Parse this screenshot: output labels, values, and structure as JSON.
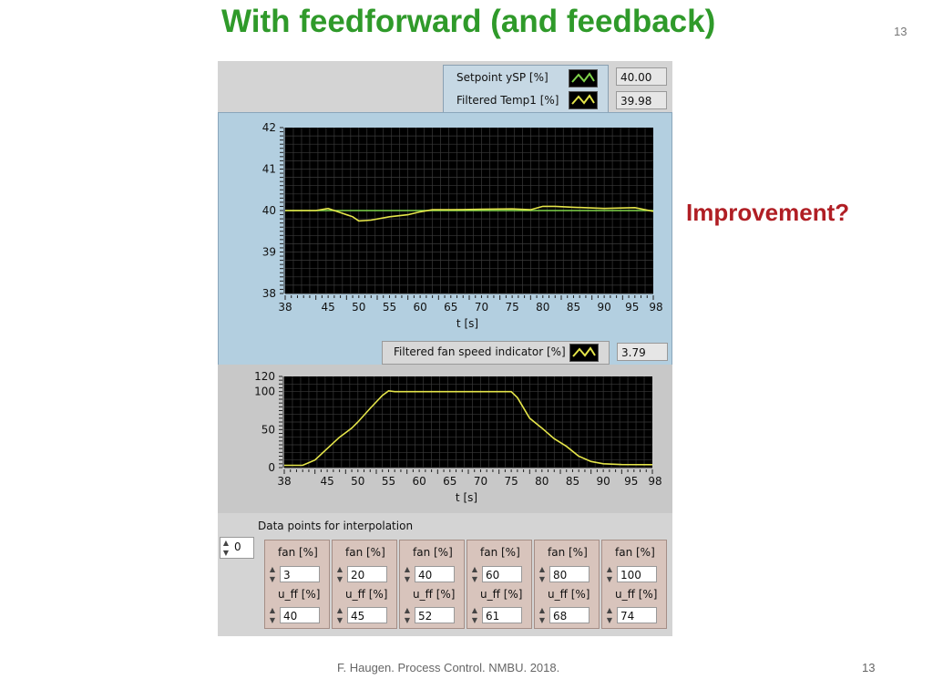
{
  "slide": {
    "title": "With feedforward (and feedback)",
    "page_number_top": "13",
    "note": "Improvement?",
    "footer": "F. Haugen. Process Control. NMBU. 2018.",
    "page_number_bottom": "13"
  },
  "legend_top": {
    "items": [
      {
        "label": "Setpoint ySP [%]",
        "value": "40.00",
        "color": "#7fd34a"
      },
      {
        "label": "Filtered Temp1 [%]",
        "value": "39.98",
        "color": "#e5e54a"
      }
    ]
  },
  "legend_bottom": {
    "label": "Filtered fan speed indicator [%]",
    "value": "3.79",
    "color": "#e5e54a"
  },
  "chart_data": [
    {
      "type": "line",
      "xlabel": "t [s]",
      "xlim": [
        38,
        98
      ],
      "ylim": [
        38,
        42
      ],
      "x_ticks": [
        "38",
        "45",
        "50",
        "55",
        "60",
        "65",
        "70",
        "75",
        "80",
        "85",
        "90",
        "95",
        "98"
      ],
      "y_ticks": [
        "42",
        "41",
        "40",
        "39",
        "38"
      ],
      "grid": true,
      "series": [
        {
          "name": "Setpoint ySP [%]",
          "color": "#7fd34a",
          "x": [
            38,
            98
          ],
          "y": [
            40,
            40
          ]
        },
        {
          "name": "Filtered Temp1 [%]",
          "color": "#e5e54a",
          "x": [
            38,
            43,
            45,
            47,
            49,
            50,
            52,
            55,
            58,
            60,
            62,
            65,
            70,
            75,
            78,
            80,
            82,
            85,
            90,
            95,
            98
          ],
          "y": [
            40,
            40,
            40.05,
            39.95,
            39.85,
            39.75,
            39.77,
            39.85,
            39.9,
            39.97,
            40.02,
            40.02,
            40.03,
            40.04,
            40.02,
            40.1,
            40.1,
            40.08,
            40.05,
            40.07,
            39.98
          ]
        }
      ]
    },
    {
      "type": "line",
      "xlabel": "t [s]",
      "xlim": [
        38,
        98
      ],
      "ylim": [
        0,
        120
      ],
      "x_ticks": [
        "38",
        "45",
        "50",
        "55",
        "60",
        "65",
        "70",
        "75",
        "80",
        "85",
        "90",
        "95",
        "98"
      ],
      "y_ticks": [
        "120",
        "100",
        "50",
        "0"
      ],
      "grid": true,
      "series": [
        {
          "name": "Filtered fan speed indicator [%]",
          "color": "#e5e54a",
          "x": [
            38,
            41,
            43,
            45,
            47,
            49,
            50,
            52,
            54,
            55,
            56,
            57,
            75,
            76,
            78,
            80,
            82,
            84,
            86,
            88,
            90,
            93,
            98
          ],
          "y": [
            3,
            3,
            10,
            25,
            40,
            52,
            60,
            78,
            95,
            101,
            100,
            100,
            100,
            92,
            65,
            52,
            38,
            28,
            15,
            8,
            5,
            4,
            3.79
          ]
        }
      ]
    }
  ],
  "interpolation": {
    "label": "Data points for interpolation",
    "index": "0",
    "points": [
      {
        "fan_label": "fan [%]",
        "fan": "3",
        "uff_label": "u_ff [%]",
        "uff": "40"
      },
      {
        "fan_label": "fan [%]",
        "fan": "20",
        "uff_label": "u_ff [%]",
        "uff": "45"
      },
      {
        "fan_label": "fan [%]",
        "fan": "40",
        "uff_label": "u_ff [%]",
        "uff": "52"
      },
      {
        "fan_label": "fan [%]",
        "fan": "60",
        "uff_label": "u_ff [%]",
        "uff": "61"
      },
      {
        "fan_label": "fan [%]",
        "fan": "80",
        "uff_label": "u_ff [%]",
        "uff": "68"
      },
      {
        "fan_label": "fan [%]",
        "fan": "100",
        "uff_label": "u_ff [%]",
        "uff": "74"
      }
    ]
  }
}
